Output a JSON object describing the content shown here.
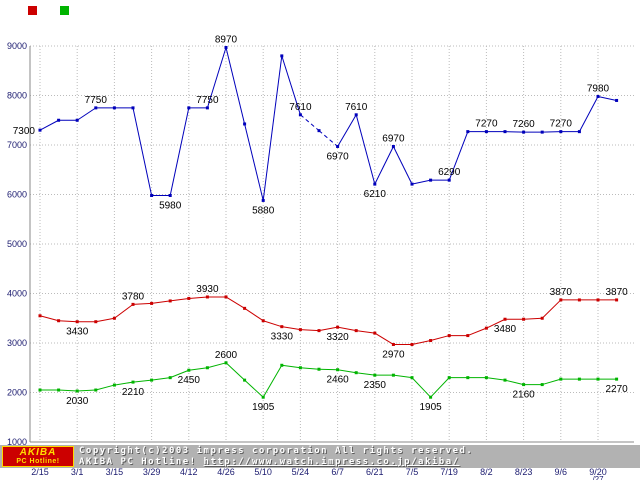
{
  "footer": {
    "line1": "Copyright(c)2003 impress corporation All rights reserved.",
    "line2_left": "AKIBA PC Hotline!",
    "line2_url": "http://www.watch.impress.co.jp/akiba/",
    "logo": {
      "top": "AKIBA",
      "bottom": "PC Hotline!",
      "bg": "#cc0000",
      "fg": "#ffdd00"
    }
  },
  "chart_data": {
    "type": "line",
    "title": "",
    "xlabel": "",
    "ylabel": "",
    "ylim": [
      1000,
      9000
    ],
    "y_ticks": [
      1000,
      2000,
      3000,
      4000,
      5000,
      6000,
      7000,
      8000,
      9000
    ],
    "grid": true,
    "grid_color": "#bbbbbb",
    "axis_label_color": "#1b1b6f",
    "point_label_color": "#000000",
    "legend_swatches": [
      "#cc0000",
      "#00b400"
    ],
    "n_points": 32,
    "tick_every": 2,
    "x_tick_labels": [
      "2/15",
      "3/1",
      "3/15",
      "3/29",
      "4/12",
      "4/26",
      "5/10",
      "5/24",
      "6/7",
      "6/21",
      "7/5",
      "7/19",
      "8/2",
      "8/23",
      "9/6",
      "9/20|/27"
    ],
    "series": [
      {
        "name": "blue-series",
        "color": "#0000bb",
        "values": [
          7300,
          7500,
          7500,
          7750,
          7750,
          7750,
          5980,
          5980,
          7750,
          7750,
          8970,
          7425,
          5880,
          8800,
          7610,
          7290,
          6970,
          7610,
          6210,
          6970,
          6210,
          6290,
          6290,
          7270,
          7270,
          7270,
          7260,
          7260,
          7270,
          7270,
          7980,
          7900
        ],
        "dashed_segments": [
          [
            14,
            16
          ]
        ],
        "labels": [
          {
            "i": 0,
            "text": "7300",
            "pos": "left"
          },
          {
            "i": 3,
            "text": "7750",
            "pos": "above"
          },
          {
            "i": 7,
            "text": "5980",
            "pos": "below"
          },
          {
            "i": 9,
            "text": "7750",
            "pos": "above"
          },
          {
            "i": 10,
            "text": "8970",
            "pos": "above"
          },
          {
            "i": 12,
            "text": "5880",
            "pos": "below"
          },
          {
            "i": 14,
            "text": "7610",
            "pos": "above"
          },
          {
            "i": 16,
            "text": "6970",
            "pos": "below"
          },
          {
            "i": 17,
            "text": "7610",
            "pos": "above"
          },
          {
            "i": 18,
            "text": "6210",
            "pos": "below"
          },
          {
            "i": 19,
            "text": "6970",
            "pos": "above"
          },
          {
            "i": 22,
            "text": "6290",
            "pos": "above"
          },
          {
            "i": 24,
            "text": "7270",
            "pos": "above"
          },
          {
            "i": 26,
            "text": "7260",
            "pos": "above"
          },
          {
            "i": 28,
            "text": "7270",
            "pos": "above"
          },
          {
            "i": 30,
            "text": "7980",
            "pos": "above"
          }
        ]
      },
      {
        "name": "red-series",
        "color": "#cc0000",
        "values": [
          3550,
          3450,
          3430,
          3430,
          3500,
          3780,
          3800,
          3850,
          3900,
          3930,
          3930,
          3700,
          3450,
          3330,
          3270,
          3250,
          3320,
          3250,
          3200,
          2970,
          2970,
          3050,
          3150,
          3150,
          3300,
          3480,
          3480,
          3500,
          3870,
          3870,
          3870,
          3870
        ],
        "dashed_segments": [],
        "labels": [
          {
            "i": 2,
            "text": "3430",
            "pos": "below"
          },
          {
            "i": 5,
            "text": "3780",
            "pos": "above"
          },
          {
            "i": 9,
            "text": "3930",
            "pos": "above"
          },
          {
            "i": 13,
            "text": "3330",
            "pos": "below"
          },
          {
            "i": 16,
            "text": "3320",
            "pos": "below"
          },
          {
            "i": 19,
            "text": "2970",
            "pos": "below"
          },
          {
            "i": 25,
            "text": "3480",
            "pos": "below"
          },
          {
            "i": 28,
            "text": "3870",
            "pos": "above"
          },
          {
            "i": 31,
            "text": "3870",
            "pos": "above"
          }
        ]
      },
      {
        "name": "green-series",
        "color": "#00b400",
        "values": [
          2050,
          2050,
          2030,
          2050,
          2150,
          2210,
          2250,
          2300,
          2450,
          2500,
          2600,
          2250,
          1905,
          2550,
          2500,
          2470,
          2460,
          2400,
          2350,
          2350,
          2300,
          1905,
          2300,
          2300,
          2300,
          2250,
          2160,
          2160,
          2270,
          2270,
          2270,
          2270
        ],
        "dashed_segments": [],
        "labels": [
          {
            "i": 2,
            "text": "2030",
            "pos": "below"
          },
          {
            "i": 5,
            "text": "2210",
            "pos": "below"
          },
          {
            "i": 8,
            "text": "2450",
            "pos": "below"
          },
          {
            "i": 10,
            "text": "2600",
            "pos": "above"
          },
          {
            "i": 12,
            "text": "1905",
            "pos": "below"
          },
          {
            "i": 16,
            "text": "2460",
            "pos": "below"
          },
          {
            "i": 18,
            "text": "2350",
            "pos": "below"
          },
          {
            "i": 21,
            "text": "1905",
            "pos": "below"
          },
          {
            "i": 26,
            "text": "2160",
            "pos": "below"
          },
          {
            "i": 31,
            "text": "2270",
            "pos": "below"
          }
        ]
      }
    ]
  }
}
